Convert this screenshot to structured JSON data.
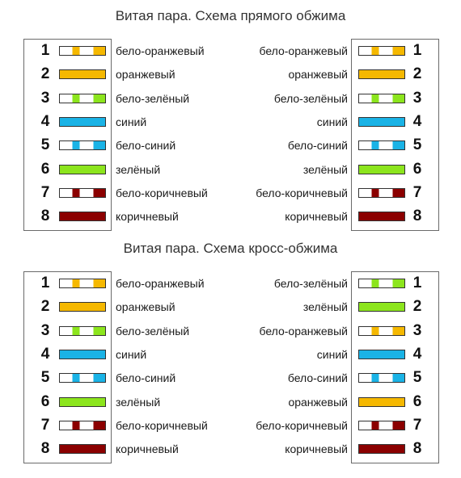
{
  "colors": {
    "orange": "#f5b800",
    "green": "#8ce51d",
    "blue": "#1ab3e6",
    "brown": "#8b0000",
    "white": "#ffffff"
  },
  "straight": {
    "title": "Витая пара. Схема прямого обжима",
    "left": [
      {
        "pin": "1",
        "label": "бело-оранжевый",
        "color": "orange",
        "striped": true
      },
      {
        "pin": "2",
        "label": "оранжевый",
        "color": "orange",
        "striped": false
      },
      {
        "pin": "3",
        "label": "бело-зелёный",
        "color": "green",
        "striped": true
      },
      {
        "pin": "4",
        "label": "синий",
        "color": "blue",
        "striped": false
      },
      {
        "pin": "5",
        "label": "бело-синий",
        "color": "blue",
        "striped": true
      },
      {
        "pin": "6",
        "label": "зелёный",
        "color": "green",
        "striped": false
      },
      {
        "pin": "7",
        "label": "бело-коричневый",
        "color": "brown",
        "striped": true
      },
      {
        "pin": "8",
        "label": "коричневый",
        "color": "brown",
        "striped": false
      }
    ],
    "right": [
      {
        "pin": "1",
        "label": "бело-оранжевый",
        "color": "orange",
        "striped": true
      },
      {
        "pin": "2",
        "label": "оранжевый",
        "color": "orange",
        "striped": false
      },
      {
        "pin": "3",
        "label": "бело-зелёный",
        "color": "green",
        "striped": true
      },
      {
        "pin": "4",
        "label": "синий",
        "color": "blue",
        "striped": false
      },
      {
        "pin": "5",
        "label": "бело-синий",
        "color": "blue",
        "striped": true
      },
      {
        "pin": "6",
        "label": "зелёный",
        "color": "green",
        "striped": false
      },
      {
        "pin": "7",
        "label": "бело-коричневый",
        "color": "brown",
        "striped": true
      },
      {
        "pin": "8",
        "label": "коричневый",
        "color": "brown",
        "striped": false
      }
    ]
  },
  "cross": {
    "title": "Витая пара. Схема кросс-обжима",
    "left": [
      {
        "pin": "1",
        "label": "бело-оранжевый",
        "color": "orange",
        "striped": true
      },
      {
        "pin": "2",
        "label": "оранжевый",
        "color": "orange",
        "striped": false
      },
      {
        "pin": "3",
        "label": "бело-зелёный",
        "color": "green",
        "striped": true
      },
      {
        "pin": "4",
        "label": "синий",
        "color": "blue",
        "striped": false
      },
      {
        "pin": "5",
        "label": "бело-синий",
        "color": "blue",
        "striped": true
      },
      {
        "pin": "6",
        "label": "зелёный",
        "color": "green",
        "striped": false
      },
      {
        "pin": "7",
        "label": "бело-коричневый",
        "color": "brown",
        "striped": true
      },
      {
        "pin": "8",
        "label": "коричневый",
        "color": "brown",
        "striped": false
      }
    ],
    "right": [
      {
        "pin": "1",
        "label": "бело-зелёный",
        "color": "green",
        "striped": true
      },
      {
        "pin": "2",
        "label": "зелёный",
        "color": "green",
        "striped": false
      },
      {
        "pin": "3",
        "label": "бело-оранжевый",
        "color": "orange",
        "striped": true
      },
      {
        "pin": "4",
        "label": "синий",
        "color": "blue",
        "striped": false
      },
      {
        "pin": "5",
        "label": "бело-синий",
        "color": "blue",
        "striped": true
      },
      {
        "pin": "6",
        "label": "оранжевый",
        "color": "orange",
        "striped": false
      },
      {
        "pin": "7",
        "label": "бело-коричневый",
        "color": "brown",
        "striped": true
      },
      {
        "pin": "8",
        "label": "коричневый",
        "color": "brown",
        "striped": false
      }
    ]
  }
}
